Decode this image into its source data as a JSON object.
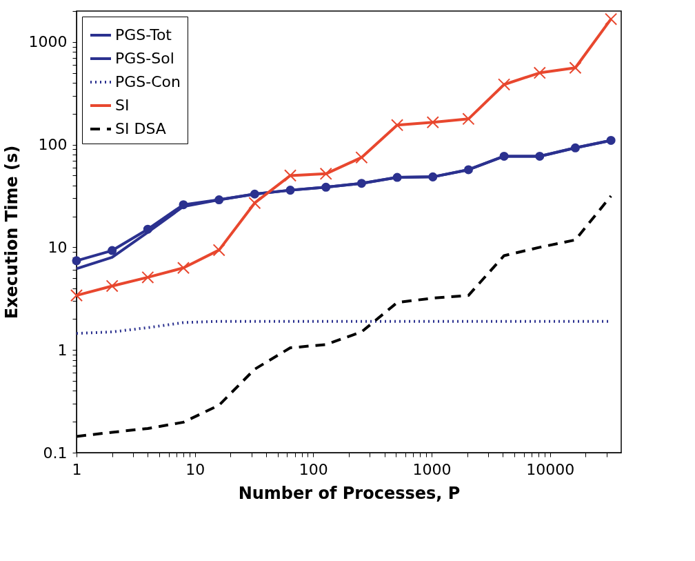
{
  "chart_data": {
    "type": "line",
    "xlabel": "Number of Processes, P",
    "ylabel": "Execution Time (s)",
    "log": "xy",
    "grid": false,
    "legend": "top left",
    "x": [
      1,
      2,
      4,
      8,
      16,
      32,
      64,
      128,
      256,
      512,
      1024,
      2048,
      4096,
      8192,
      16384,
      32768
    ],
    "xlim": [
      1,
      40000
    ],
    "xticks": [
      1,
      {
        "value": 2,
        "label": null
      },
      {
        "value": 3,
        "label": null
      },
      {
        "value": 4,
        "label": null
      },
      {
        "value": 5,
        "label": null
      },
      {
        "value": 6,
        "label": null
      },
      {
        "value": 7,
        "label": null
      },
      {
        "value": 8,
        "label": null
      },
      {
        "value": 9,
        "label": null
      },
      10,
      {
        "value": 20,
        "label": null
      },
      {
        "value": 30,
        "label": null
      },
      {
        "value": 40,
        "label": null
      },
      {
        "value": 50,
        "label": null
      },
      {
        "value": 60,
        "label": null
      },
      {
        "value": 70,
        "label": null
      },
      {
        "value": 80,
        "label": null
      },
      {
        "value": 90,
        "label": null
      },
      100,
      {
        "value": 200,
        "label": null
      },
      {
        "value": 300,
        "label": null
      },
      {
        "value": 400,
        "label": null
      },
      {
        "value": 500,
        "label": null
      },
      {
        "value": 600,
        "label": null
      },
      {
        "value": 700,
        "label": null
      },
      {
        "value": 800,
        "label": null
      },
      {
        "value": 900,
        "label": null
      },
      1000,
      {
        "value": 2000,
        "label": null
      },
      {
        "value": 3000,
        "label": null
      },
      {
        "value": 4000,
        "label": null
      },
      {
        "value": 5000,
        "label": null
      },
      {
        "value": 6000,
        "label": null
      },
      {
        "value": 7000,
        "label": null
      },
      {
        "value": 8000,
        "label": null
      },
      {
        "value": 9000,
        "label": null
      },
      10000,
      {
        "value": 20000,
        "label": null
      },
      {
        "value": 30000,
        "label": null
      }
    ],
    "ylim": [
      0.1,
      2000
    ],
    "yticks": [
      0.1,
      {
        "value": 0.2,
        "label": null
      },
      {
        "value": 0.3,
        "label": null
      },
      {
        "value": 0.4,
        "label": null
      },
      {
        "value": 0.5,
        "label": null
      },
      {
        "value": 0.6,
        "label": null
      },
      {
        "value": 0.7,
        "label": null
      },
      {
        "value": 0.8,
        "label": null
      },
      {
        "value": 0.9,
        "label": null
      },
      1,
      {
        "value": 2,
        "label": null
      },
      {
        "value": 3,
        "label": null
      },
      {
        "value": 4,
        "label": null
      },
      {
        "value": 5,
        "label": null
      },
      {
        "value": 6,
        "label": null
      },
      {
        "value": 7,
        "label": null
      },
      {
        "value": 8,
        "label": null
      },
      {
        "value": 9,
        "label": null
      },
      10,
      {
        "value": 20,
        "label": null
      },
      {
        "value": 30,
        "label": null
      },
      {
        "value": 40,
        "label": null
      },
      {
        "value": 50,
        "label": null
      },
      {
        "value": 60,
        "label": null
      },
      {
        "value": 70,
        "label": null
      },
      {
        "value": 80,
        "label": null
      },
      {
        "value": 90,
        "label": null
      },
      100,
      {
        "value": 200,
        "label": null
      },
      {
        "value": 300,
        "label": null
      },
      {
        "value": 400,
        "label": null
      },
      {
        "value": 500,
        "label": null
      },
      {
        "value": 600,
        "label": null
      },
      {
        "value": 700,
        "label": null
      },
      {
        "value": 800,
        "label": null
      },
      {
        "value": 900,
        "label": null
      },
      1000,
      {
        "value": 2000,
        "label": null
      }
    ],
    "series": [
      {
        "name": "PGS-Tot",
        "color": "#2b318f",
        "marker": "circle",
        "line_style": "solid",
        "values": [
          7.4,
          9.3,
          15,
          26,
          29,
          33,
          36,
          38.5,
          42,
          48,
          48.5,
          57,
          77,
          77,
          93,
          110
        ]
      },
      {
        "name": "PGS-Sol",
        "color": "#2b318f",
        "marker": "none",
        "line_style": "solid",
        "values": [
          6.2,
          8,
          14,
          25,
          29,
          33,
          36,
          38.5,
          42,
          48,
          48.5,
          57,
          77,
          77,
          93,
          110
        ]
      },
      {
        "name": "PGS-Con",
        "color": "#2b318f",
        "marker": "none",
        "line_style": "dotted",
        "values": [
          1.45,
          1.5,
          1.65,
          1.85,
          1.9,
          1.9,
          1.9,
          1.9,
          1.9,
          1.9,
          1.9,
          1.9,
          1.9,
          1.9,
          1.9,
          1.9
        ]
      },
      {
        "name": "SI",
        "color": "#e8472e",
        "marker": "cross",
        "line_style": "solid",
        "values": [
          3.4,
          4.2,
          5.1,
          6.3,
          9.4,
          27,
          50,
          52,
          75,
          155,
          165,
          178,
          385,
          500,
          560,
          1670
        ]
      },
      {
        "name": "SI DSA",
        "color": "#000000",
        "marker": "none",
        "line_style": "dashed",
        "values": [
          0.144,
          0.158,
          0.172,
          0.198,
          0.29,
          0.65,
          1.05,
          1.13,
          1.5,
          2.9,
          3.2,
          3.4,
          8.3,
          10,
          11.8,
          31.6
        ]
      }
    ]
  }
}
